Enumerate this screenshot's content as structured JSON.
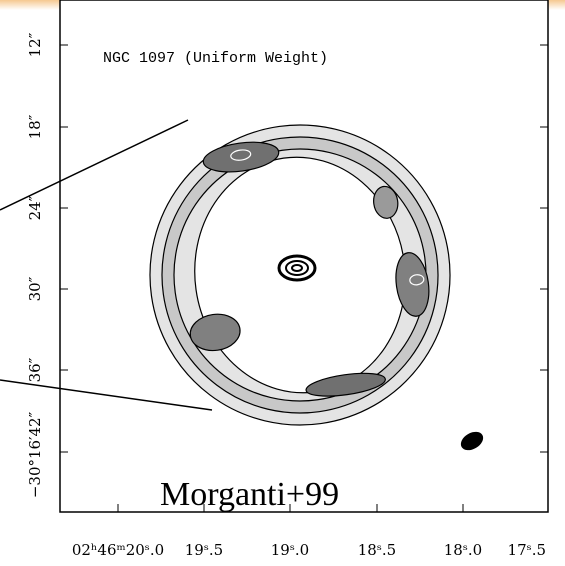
{
  "figure": {
    "title": "NGC 1097 (Uniform Weight)",
    "annotation": "Morganti+99",
    "y_tick_labels": [
      "12″",
      "18″",
      "24″",
      "30″",
      "36″",
      "−30°16′42″"
    ],
    "x_tick_labels": [
      "02ʰ46ᵐ20ˢ.0",
      "19ˢ.5",
      "19ˢ.0",
      "18ˢ.5",
      "18ˢ.0",
      "17ˢ.5"
    ]
  }
}
